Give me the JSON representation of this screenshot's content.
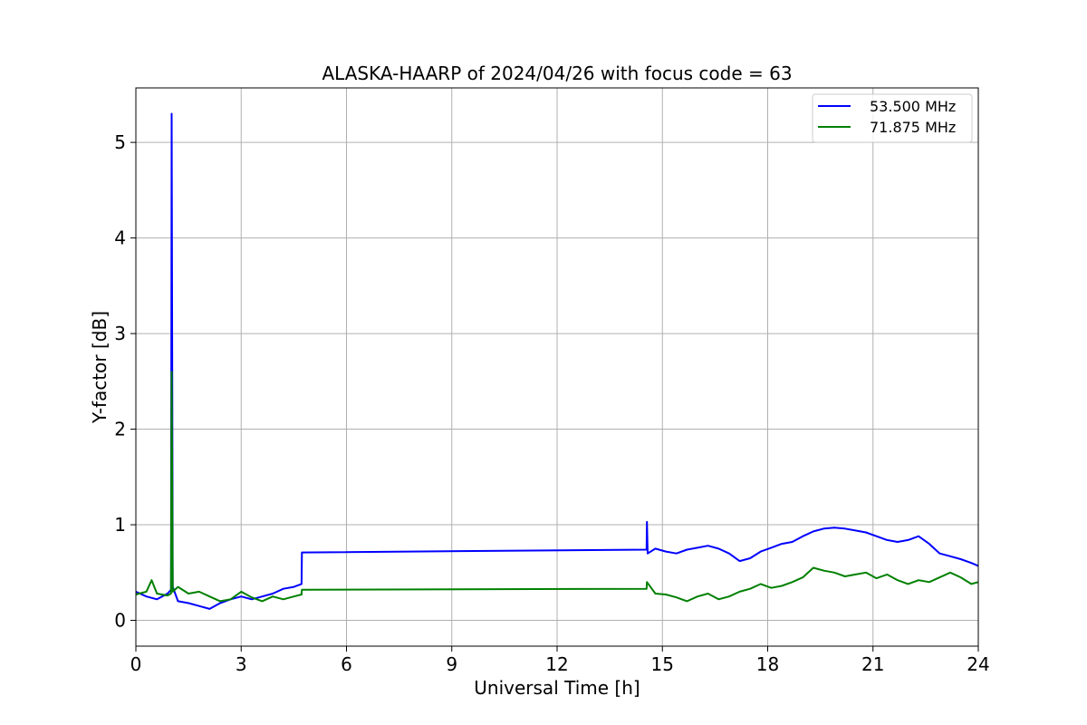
{
  "chart_data": {
    "type": "line",
    "title": "ALASKA-HAARP of 2024/04/26 with focus code = 63",
    "xlabel": "Universal Time [h]",
    "ylabel": "Y-factor [dB]",
    "xlim": [
      0,
      24
    ],
    "ylim": [
      -0.27,
      5.57
    ],
    "xticks": [
      0,
      3,
      6,
      9,
      12,
      15,
      18,
      21,
      24
    ],
    "yticks": [
      0,
      1,
      2,
      3,
      4,
      5
    ],
    "grid": true,
    "legend_position": "top-right",
    "series": [
      {
        "name": "53.500 MHz",
        "color": "#0000ff",
        "points": [
          [
            0.0,
            0.3
          ],
          [
            0.3,
            0.25
          ],
          [
            0.6,
            0.22
          ],
          [
            0.9,
            0.28
          ],
          [
            1.0,
            0.32
          ],
          [
            1.02,
            5.3
          ],
          [
            1.05,
            0.35
          ],
          [
            1.2,
            0.2
          ],
          [
            1.5,
            0.18
          ],
          [
            1.8,
            0.15
          ],
          [
            2.1,
            0.12
          ],
          [
            2.4,
            0.18
          ],
          [
            2.7,
            0.22
          ],
          [
            3.0,
            0.25
          ],
          [
            3.3,
            0.22
          ],
          [
            3.6,
            0.25
          ],
          [
            3.9,
            0.28
          ],
          [
            4.2,
            0.33
          ],
          [
            4.5,
            0.35
          ],
          [
            4.72,
            0.38
          ],
          [
            4.73,
            0.71
          ],
          [
            14.55,
            0.74
          ],
          [
            14.56,
            1.03
          ],
          [
            14.58,
            0.7
          ],
          [
            14.8,
            0.75
          ],
          [
            15.1,
            0.72
          ],
          [
            15.4,
            0.7
          ],
          [
            15.7,
            0.74
          ],
          [
            16.0,
            0.76
          ],
          [
            16.3,
            0.78
          ],
          [
            16.6,
            0.75
          ],
          [
            16.9,
            0.7
          ],
          [
            17.2,
            0.62
          ],
          [
            17.5,
            0.65
          ],
          [
            17.8,
            0.72
          ],
          [
            18.1,
            0.76
          ],
          [
            18.4,
            0.8
          ],
          [
            18.7,
            0.82
          ],
          [
            19.0,
            0.88
          ],
          [
            19.3,
            0.93
          ],
          [
            19.6,
            0.96
          ],
          [
            19.9,
            0.97
          ],
          [
            20.2,
            0.96
          ],
          [
            20.5,
            0.94
          ],
          [
            20.8,
            0.92
          ],
          [
            21.1,
            0.88
          ],
          [
            21.4,
            0.84
          ],
          [
            21.7,
            0.82
          ],
          [
            22.0,
            0.84
          ],
          [
            22.3,
            0.88
          ],
          [
            22.6,
            0.8
          ],
          [
            22.9,
            0.7
          ],
          [
            23.2,
            0.67
          ],
          [
            23.5,
            0.64
          ],
          [
            23.8,
            0.6
          ],
          [
            24.0,
            0.57
          ]
        ]
      },
      {
        "name": "71.875 MHz",
        "color": "#008000",
        "points": [
          [
            0.0,
            0.27
          ],
          [
            0.3,
            0.3
          ],
          [
            0.45,
            0.42
          ],
          [
            0.6,
            0.28
          ],
          [
            0.9,
            0.26
          ],
          [
            1.0,
            0.28
          ],
          [
            1.02,
            2.6
          ],
          [
            1.05,
            0.3
          ],
          [
            1.2,
            0.35
          ],
          [
            1.5,
            0.28
          ],
          [
            1.8,
            0.3
          ],
          [
            2.1,
            0.25
          ],
          [
            2.4,
            0.2
          ],
          [
            2.7,
            0.22
          ],
          [
            3.0,
            0.3
          ],
          [
            3.3,
            0.24
          ],
          [
            3.6,
            0.2
          ],
          [
            3.9,
            0.25
          ],
          [
            4.2,
            0.22
          ],
          [
            4.5,
            0.25
          ],
          [
            4.72,
            0.27
          ],
          [
            4.73,
            0.32
          ],
          [
            14.55,
            0.33
          ],
          [
            14.56,
            0.4
          ],
          [
            14.8,
            0.28
          ],
          [
            15.1,
            0.27
          ],
          [
            15.4,
            0.24
          ],
          [
            15.7,
            0.2
          ],
          [
            16.0,
            0.25
          ],
          [
            16.3,
            0.28
          ],
          [
            16.6,
            0.22
          ],
          [
            16.9,
            0.25
          ],
          [
            17.2,
            0.3
          ],
          [
            17.5,
            0.33
          ],
          [
            17.8,
            0.38
          ],
          [
            18.1,
            0.34
          ],
          [
            18.4,
            0.36
          ],
          [
            18.7,
            0.4
          ],
          [
            19.0,
            0.45
          ],
          [
            19.3,
            0.55
          ],
          [
            19.6,
            0.52
          ],
          [
            19.9,
            0.5
          ],
          [
            20.2,
            0.46
          ],
          [
            20.5,
            0.48
          ],
          [
            20.8,
            0.5
          ],
          [
            21.1,
            0.44
          ],
          [
            21.4,
            0.48
          ],
          [
            21.7,
            0.42
          ],
          [
            22.0,
            0.38
          ],
          [
            22.3,
            0.42
          ],
          [
            22.6,
            0.4
          ],
          [
            22.9,
            0.45
          ],
          [
            23.2,
            0.5
          ],
          [
            23.5,
            0.45
          ],
          [
            23.8,
            0.38
          ],
          [
            24.0,
            0.4
          ]
        ]
      }
    ]
  }
}
